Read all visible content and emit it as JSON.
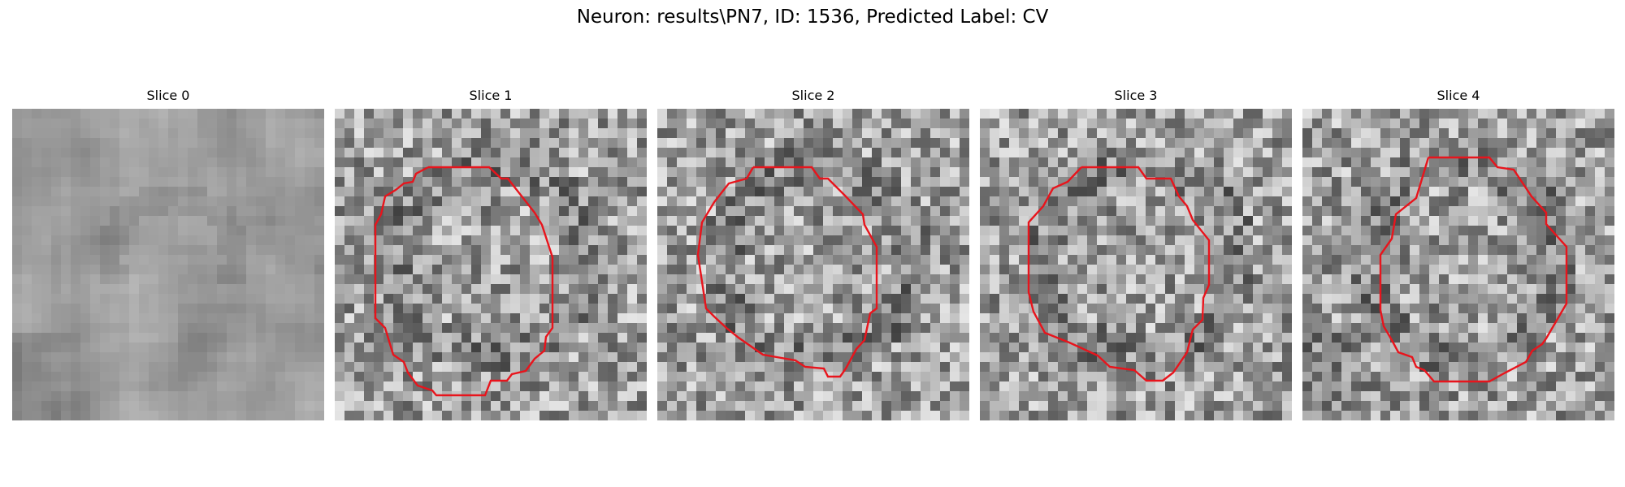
{
  "figure": {
    "title": "Neuron: results\\PN7, ID: 1536, Predicted Label: CV"
  },
  "panels": [
    {
      "title": "Slice 0",
      "has_contour": false
    },
    {
      "title": "Slice 1",
      "has_contour": true
    },
    {
      "title": "Slice 2",
      "has_contour": true
    },
    {
      "title": "Slice 3",
      "has_contour": true
    },
    {
      "title": "Slice 4",
      "has_contour": true
    }
  ],
  "colors": {
    "contour": "#e8141c",
    "background": "#ffffff"
  },
  "image": {
    "colormap": "grayscale",
    "grid_cells": 32
  }
}
